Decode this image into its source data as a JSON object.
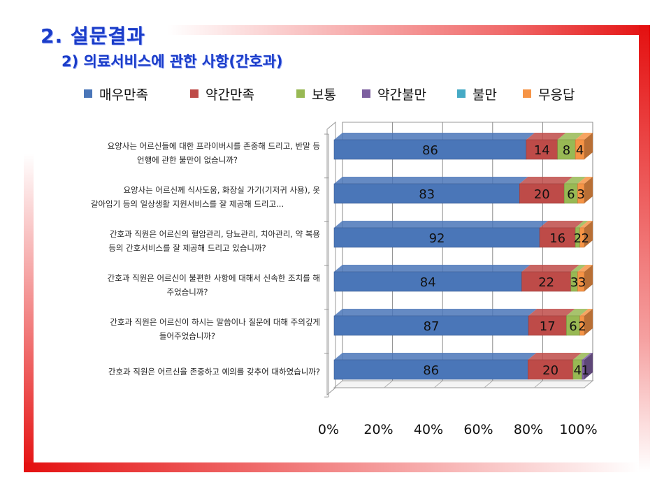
{
  "slide": {
    "title": "2. 설문결과",
    "subtitle": "2) 의료서비스에 관한 사항(간호과)"
  },
  "chart_data": {
    "type": "bar",
    "orientation": "horizontal",
    "stacked": "percent",
    "title": "",
    "xlabel": "",
    "ylabel": "",
    "xlim": [
      0,
      100
    ],
    "x_ticks": [
      "0%",
      "20%",
      "40%",
      "60%",
      "80%",
      "100%"
    ],
    "legend_position": "top",
    "categories": [
      [
        "요양사는 어르신들에 대한 프라이버시를 존중해 드리고, 반말 등",
        "언행에 관한 불만이 없습니까?"
      ],
      [
        "요양사는 어르신께 식사도움, 화장실 가기(기저귀 사용), 옷",
        "갈아입기 등의 일상생활 지원서비스를 잘 제공해 드리고..."
      ],
      [
        "간호과 직원은 어르신의 혈압관리, 당뇨관리, 치아관리, 약 복용",
        "등의 간호서비스를 잘 제공해 드리고 있습니까?"
      ],
      [
        "간호과 직원은 어르신이 불편한 사항에 대해서 신속한 조치를 해",
        "주었습니까?"
      ],
      [
        "간호과 직원은 어르신이 하시는 말씀이나 질문에 대해 주의깊게",
        "들어주었습니까?"
      ],
      [
        "간호과 직원은 어르신을 존중하고 예의를 갖추어 대하였습니까?"
      ]
    ],
    "series": [
      {
        "name": "매우만족",
        "color": "#4a76b8",
        "values": [
          86,
          83,
          92,
          84,
          87,
          86
        ]
      },
      {
        "name": "약간만족",
        "color": "#be4b48",
        "values": [
          14,
          20,
          16,
          22,
          17,
          20
        ]
      },
      {
        "name": "보통",
        "color": "#98b954",
        "values": [
          8,
          6,
          2,
          3,
          6,
          4
        ]
      },
      {
        "name": "약간불만",
        "color": "#7d5fa0",
        "values": [
          0,
          0,
          0,
          0,
          0,
          1
        ]
      },
      {
        "name": "불만",
        "color": "#46aac5",
        "values": [
          0,
          0,
          0,
          0,
          0,
          0
        ]
      },
      {
        "name": "무응답",
        "color": "#f69446",
        "values": [
          4,
          3,
          2,
          3,
          2,
          0
        ]
      }
    ]
  }
}
